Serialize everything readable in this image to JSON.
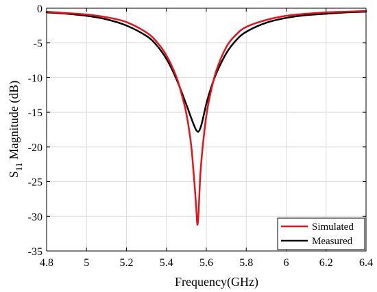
{
  "chart_data": {
    "type": "line",
    "xlabel": "Frequency(GHz)",
    "ylabel_main": "S",
    "ylabel_sub": "11",
    "ylabel_rest": " Magnitude (dB)",
    "xlim": [
      4.8,
      6.4
    ],
    "ylim": [
      -35,
      0
    ],
    "xticks": [
      4.8,
      5,
      5.2,
      5.4,
      5.6,
      5.8,
      6,
      6.2,
      6.4
    ],
    "xtick_labels": [
      "4.8",
      "5",
      "5.2",
      "5.4",
      "5.6",
      "5.8",
      "6",
      "6.2",
      "6.4"
    ],
    "yticks": [
      0,
      -5,
      -10,
      -15,
      -20,
      -25,
      -30,
      -35
    ],
    "ytick_labels": [
      "0",
      "-5",
      "-10",
      "-15",
      "-20",
      "-25",
      "-30",
      "-35"
    ],
    "grid": true,
    "legend_position": "bottom-right",
    "series": [
      {
        "name": "Simulated",
        "color": "#e8101a",
        "x": [
          4.8,
          4.9,
          5.0,
          5.1,
          5.2,
          5.3,
          5.35,
          5.4,
          5.45,
          5.48,
          5.5,
          5.52,
          5.53,
          5.54,
          5.55,
          5.555,
          5.56,
          5.565,
          5.57,
          5.58,
          5.6,
          5.62,
          5.65,
          5.7,
          5.75,
          5.8,
          5.9,
          6.0,
          6.1,
          6.2,
          6.3,
          6.4
        ],
        "y": [
          -0.5,
          -0.7,
          -0.9,
          -1.3,
          -2.0,
          -3.5,
          -4.8,
          -6.8,
          -9.9,
          -12.8,
          -15.2,
          -18.8,
          -21.5,
          -25.0,
          -29.0,
          -31.2,
          -30.0,
          -27.0,
          -24.0,
          -20.5,
          -15.5,
          -12.4,
          -9.0,
          -5.6,
          -3.8,
          -2.7,
          -1.7,
          -1.1,
          -0.8,
          -0.6,
          -0.5,
          -0.4
        ]
      },
      {
        "name": "Measured",
        "color": "#000000",
        "x": [
          4.8,
          4.9,
          5.0,
          5.1,
          5.2,
          5.3,
          5.35,
          5.4,
          5.45,
          5.5,
          5.52,
          5.54,
          5.55,
          5.56,
          5.57,
          5.58,
          5.6,
          5.62,
          5.65,
          5.7,
          5.75,
          5.8,
          5.9,
          6.0,
          6.1,
          6.2,
          6.3,
          6.4
        ],
        "y": [
          -0.6,
          -0.8,
          -1.1,
          -1.6,
          -2.5,
          -4.0,
          -5.3,
          -7.3,
          -10.2,
          -13.9,
          -15.5,
          -17.0,
          -17.6,
          -17.8,
          -17.3,
          -16.3,
          -13.8,
          -11.8,
          -9.4,
          -6.5,
          -4.6,
          -3.4,
          -2.1,
          -1.4,
          -1.0,
          -0.8,
          -0.6,
          -0.5
        ]
      }
    ]
  }
}
